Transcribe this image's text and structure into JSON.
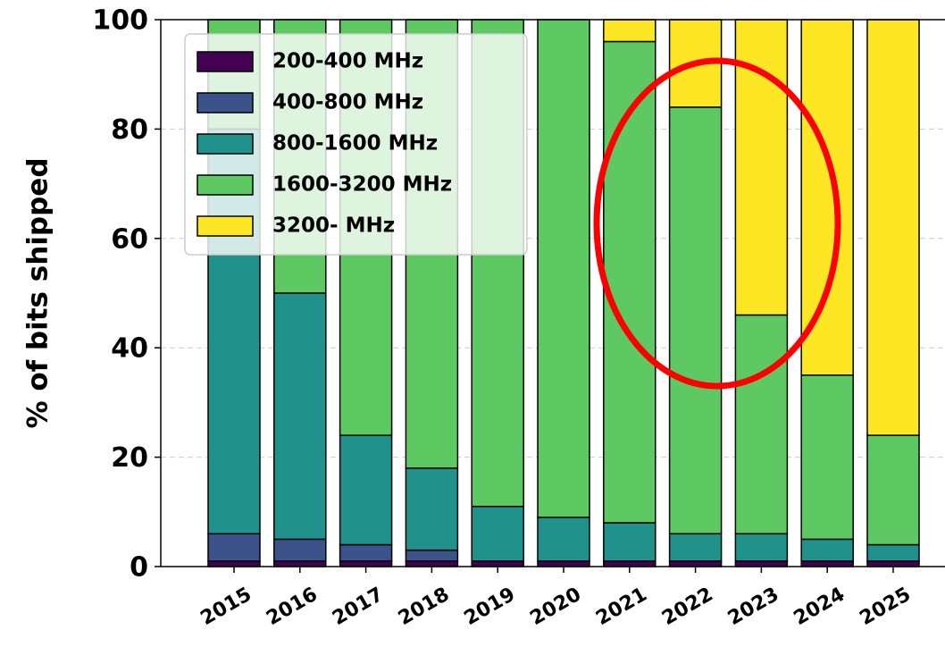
{
  "chart_data": {
    "type": "stacked_bar",
    "y_label": "% of bits shipped",
    "categories": [
      "2015",
      "2016",
      "2017",
      "2018",
      "2019",
      "2020",
      "2021",
      "2022",
      "2023",
      "2024",
      "2025"
    ],
    "series": [
      {
        "name": "200-400 MHz",
        "color": "#440154",
        "values": [
          1,
          1,
          1,
          1,
          1,
          1,
          1,
          1,
          1,
          1,
          1
        ]
      },
      {
        "name": "400-800 MHz",
        "color": "#3b528b",
        "values": [
          5,
          4,
          3,
          2,
          0,
          0,
          0,
          0,
          0,
          0,
          0
        ]
      },
      {
        "name": "800-1600 MHz",
        "color": "#21918c",
        "values": [
          74,
          45,
          20,
          15,
          10,
          8,
          7,
          5,
          5,
          4,
          3
        ]
      },
      {
        "name": "1600-3200 MHz",
        "color": "#5ec962",
        "values": [
          20,
          50,
          76,
          82,
          89,
          91,
          88,
          78,
          40,
          30,
          20
        ]
      },
      {
        "name": "3200- MHz",
        "color": "#fde725",
        "values": [
          0,
          0,
          0,
          0,
          0,
          0,
          4,
          16,
          54,
          65,
          76
        ]
      }
    ],
    "ylim": [
      0,
      100
    ],
    "yticks": [
      0,
      20,
      40,
      60,
      80,
      100
    ],
    "grid": true,
    "legend": "upper left"
  }
}
